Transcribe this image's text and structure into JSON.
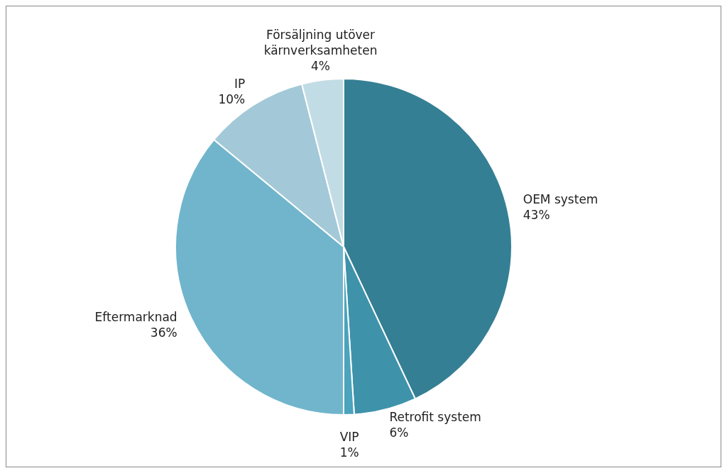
{
  "chart_data": {
    "type": "pie",
    "categories": [
      "OEM system",
      "Retrofit system",
      "VIP",
      "Eftermarknad",
      "IP",
      "Försäljning utöver kärnverksamheten"
    ],
    "values": [
      43,
      6,
      1,
      36,
      10,
      4
    ],
    "value_labels": [
      "43%",
      "6%",
      "1%",
      "36%",
      "10%",
      "4%"
    ],
    "colors": [
      "#357f94",
      "#3e93ab",
      "#4ba3bc",
      "#70b5cc",
      "#a3c9d8",
      "#c2dce5"
    ],
    "legend": false
  }
}
